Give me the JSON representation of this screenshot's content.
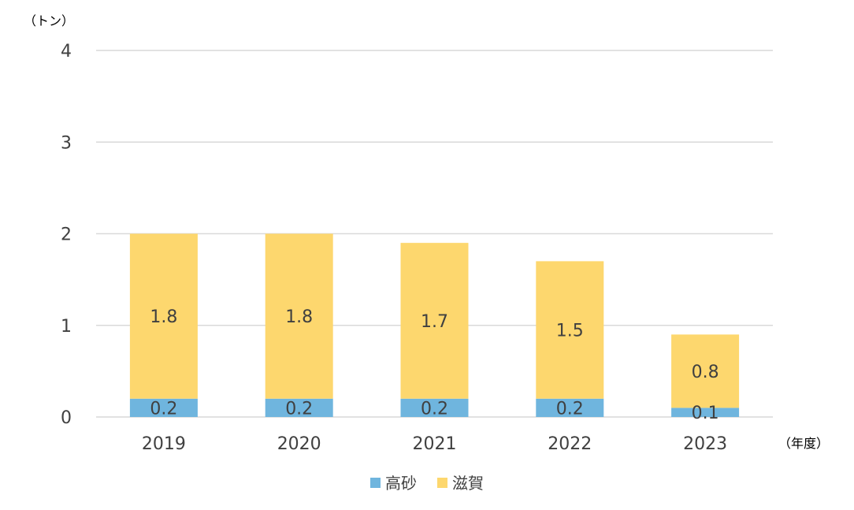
{
  "chart_data": {
    "type": "bar",
    "stacked": true,
    "title": "",
    "y_unit_label": "（トン）",
    "x_unit_label": "（年度）",
    "categories": [
      "2019",
      "2020",
      "2021",
      "2022",
      "2023"
    ],
    "series": [
      {
        "name": "高砂",
        "color": "#6fb5de",
        "values": [
          0.2,
          0.2,
          0.2,
          0.2,
          0.1
        ],
        "value_labels": [
          "0.2",
          "0.2",
          "0.2",
          "0.2",
          "0.1"
        ]
      },
      {
        "name": "滋賀",
        "color": "#fdd76e",
        "values": [
          1.8,
          1.8,
          1.7,
          1.5,
          0.8
        ],
        "value_labels": [
          "1.8",
          "1.8",
          "1.7",
          "1.5",
          "0.8"
        ]
      }
    ],
    "ylim": [
      0,
      4
    ],
    "y_ticks": [
      "0",
      "1",
      "2",
      "3",
      "4"
    ],
    "grid": true,
    "legend_position": "bottom"
  }
}
